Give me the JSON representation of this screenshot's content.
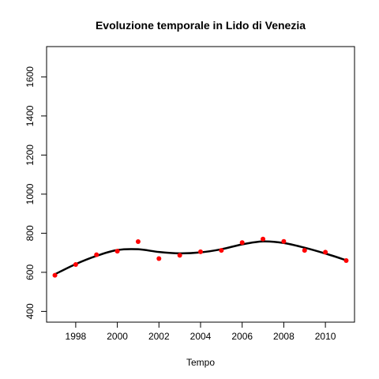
{
  "chart_data": {
    "type": "scatter",
    "title": "Evoluzione temporale in Lido di Venezia",
    "xlabel": "Tempo",
    "ylabel": "",
    "xlim": [
      1996.6,
      2011.4
    ],
    "ylim": [
      345,
      1755
    ],
    "x_ticks": [
      1998,
      2000,
      2002,
      2004,
      2006,
      2008,
      2010
    ],
    "y_ticks": [
      400,
      600,
      800,
      1000,
      1200,
      1400,
      1600
    ],
    "grid": false,
    "legend": "none",
    "series": [
      {
        "kind": "points",
        "color": "#ff0000",
        "x": [
          1997,
          1998,
          1999,
          2000,
          2001,
          2002,
          2003,
          2004,
          2005,
          2006,
          2007,
          2008,
          2009,
          2010,
          2011
        ],
        "y": [
          585,
          640,
          690,
          708,
          757,
          670,
          687,
          705,
          712,
          752,
          770,
          758,
          712,
          703,
          660
        ]
      },
      {
        "kind": "line",
        "color": "#000000",
        "x": [
          1997,
          1998,
          1999,
          2000,
          2001,
          2002,
          2003,
          2004,
          2005,
          2006,
          2007,
          2008,
          2009,
          2010,
          2011
        ],
        "y": [
          590,
          642,
          684,
          714,
          718,
          704,
          697,
          702,
          718,
          743,
          758,
          750,
          726,
          696,
          662
        ]
      }
    ]
  }
}
